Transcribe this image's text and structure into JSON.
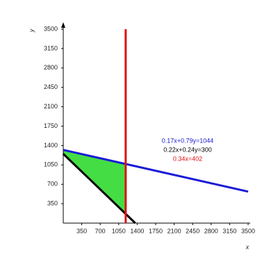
{
  "chart_data": {
    "type": "linear-program",
    "x_label": "x",
    "y_label": "y",
    "xlim": [
      0,
      3500
    ],
    "ylim": [
      0,
      3500
    ],
    "xticks": [
      350,
      700,
      1050,
      1400,
      1750,
      2100,
      2450,
      2800,
      3150,
      3500
    ],
    "yticks": [
      350,
      700,
      1050,
      1400,
      1750,
      2100,
      2450,
      2800,
      3150,
      3500
    ],
    "region_color": "#44dd44",
    "series": [
      {
        "name": "0.17x+0.79y=1044",
        "color": "#1a1ad6",
        "a": 0.17,
        "b": 0.79,
        "c": 1044,
        "relation": "<="
      },
      {
        "name": "0.22x+0.24y=300",
        "color": "#000000",
        "a": 0.22,
        "b": 0.24,
        "c": 300,
        "relation": ">="
      },
      {
        "name": "0.34x=402",
        "color": "#e01010",
        "a": 0.34,
        "b": 0,
        "c": 402,
        "relation": "<="
      }
    ]
  }
}
